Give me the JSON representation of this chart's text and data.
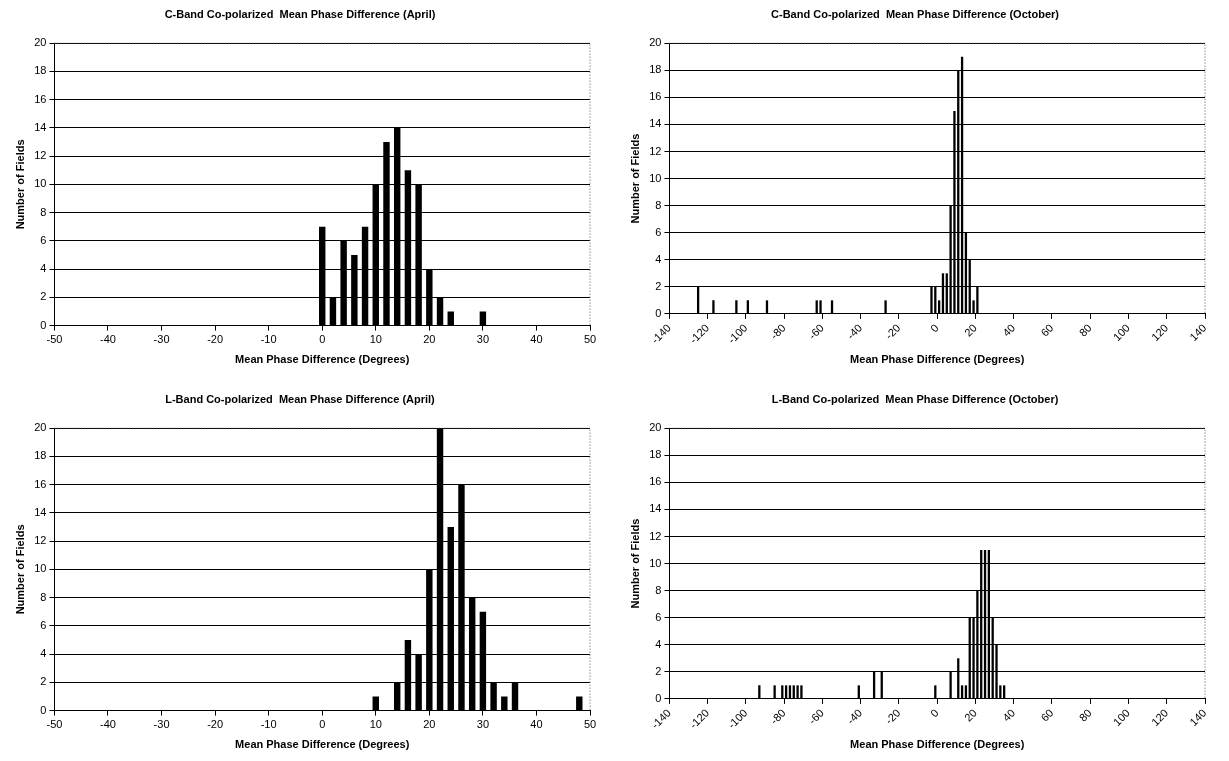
{
  "chart_data": [
    {
      "type": "bar",
      "title": "C-Band Co-polarized  Mean Phase Difference (April)",
      "xlabel": "Mean Phase Difference (Degrees)",
      "ylabel": "Number of Fields",
      "x": [
        0,
        2,
        4,
        6,
        8,
        10,
        12,
        14,
        16,
        18,
        20,
        22,
        24,
        30
      ],
      "values": [
        7,
        2,
        6,
        5,
        7,
        10,
        13,
        14,
        11,
        10,
        4,
        2,
        1,
        1
      ],
      "color": "#000000",
      "xlim": [
        -50,
        50
      ],
      "xticks": [
        -50,
        -40,
        -30,
        -20,
        -10,
        0,
        10,
        20,
        30,
        40,
        50
      ],
      "ylim": [
        0,
        20
      ],
      "yticks": [
        0,
        2,
        4,
        6,
        8,
        10,
        12,
        14,
        16,
        18,
        20
      ],
      "grid": "y"
    },
    {
      "type": "bar",
      "title": "C-Band Co-polarized  Mean Phase Difference (October)",
      "xlabel": "Mean Phase Difference (Degrees)",
      "ylabel": "Number of Fields",
      "x": [
        -125,
        -117,
        -105,
        -99,
        -89,
        -63,
        -61,
        -55,
        -27,
        -3,
        -1,
        1,
        3,
        5,
        7,
        9,
        11,
        13,
        15,
        17,
        19,
        21
      ],
      "values": [
        2,
        1,
        1,
        1,
        1,
        1,
        1,
        1,
        1,
        2,
        2,
        1,
        3,
        3,
        8,
        15,
        18,
        19,
        6,
        4,
        1,
        2
      ],
      "color": "#000000",
      "xlim": [
        -140,
        140
      ],
      "xticks": [
        -140,
        -120,
        -100,
        -80,
        -60,
        -40,
        -20,
        0,
        20,
        40,
        60,
        80,
        100,
        120,
        140
      ],
      "ylim": [
        0,
        20
      ],
      "yticks": [
        0,
        2,
        4,
        6,
        8,
        10,
        12,
        14,
        16,
        18,
        20
      ],
      "grid": "y"
    },
    {
      "type": "bar",
      "title": "L-Band Co-polarized  Mean Phase Difference (April)",
      "xlabel": "Mean Phase Difference (Degrees)",
      "ylabel": "Number of Fields",
      "x": [
        10,
        14,
        16,
        18,
        20,
        22,
        24,
        26,
        28,
        30,
        32,
        34,
        36,
        48
      ],
      "values": [
        1,
        2,
        5,
        4,
        10,
        20,
        13,
        16,
        8,
        7,
        2,
        1,
        2,
        1
      ],
      "color": "#000000",
      "xlim": [
        -50,
        50
      ],
      "xticks": [
        -50,
        -40,
        -30,
        -20,
        -10,
        0,
        10,
        20,
        30,
        40,
        50
      ],
      "ylim": [
        0,
        20
      ],
      "yticks": [
        0,
        2,
        4,
        6,
        8,
        10,
        12,
        14,
        16,
        18,
        20
      ],
      "grid": "y"
    },
    {
      "type": "bar",
      "title": "L-Band Co-polarized  Mean Phase Difference (October)",
      "xlabel": "Mean Phase Difference (Degrees)",
      "ylabel": "Number of Fields",
      "x": [
        -93,
        -85,
        -81,
        -79,
        -77,
        -75,
        -73,
        -71,
        -41,
        -33,
        -29,
        -1,
        7,
        11,
        13,
        15,
        17,
        19,
        21,
        23,
        25,
        27,
        29,
        31,
        33,
        35
      ],
      "values": [
        1,
        1,
        1,
        1,
        1,
        1,
        1,
        1,
        1,
        2,
        2,
        1,
        2,
        3,
        1,
        1,
        6,
        6,
        8,
        11,
        11,
        11,
        6,
        4,
        1,
        1
      ],
      "color": "#000000",
      "xlim": [
        -140,
        140
      ],
      "xticks": [
        -140,
        -120,
        -100,
        -80,
        -60,
        -40,
        -20,
        0,
        20,
        40,
        60,
        80,
        100,
        120,
        140
      ],
      "ylim": [
        0,
        20
      ],
      "yticks": [
        0,
        2,
        4,
        6,
        8,
        10,
        12,
        14,
        16,
        18,
        20
      ],
      "grid": "y"
    }
  ]
}
